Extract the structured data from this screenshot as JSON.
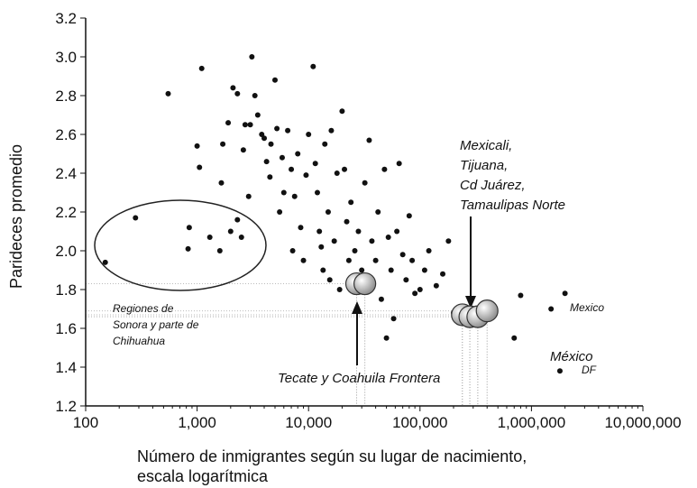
{
  "chart_data": {
    "type": "scatter",
    "y_label": "Parideces promedio",
    "x_label": [
      "Número de inmigrantes según su lugar de nacimiento,",
      "escala logarítmica"
    ],
    "log_x": true,
    "xlim": [
      100,
      10000000
    ],
    "ylim": [
      1.2,
      3.2
    ],
    "xticks": [
      100,
      {
        "value": 1000,
        "label": "1,000"
      },
      {
        "value": 10000,
        "label": "10,000"
      },
      {
        "value": 100000,
        "label": "100,000"
      },
      {
        "value": 1000000,
        "label": "1,000,000"
      },
      {
        "value": 10000000,
        "label": "10,000,000"
      }
    ],
    "yticks": [
      1.2,
      1.4,
      1.6,
      1.8,
      {
        "value": 2,
        "label": "2.0"
      },
      2.2,
      2.4,
      2.6,
      2.8,
      {
        "value": 3,
        "label": "3.0"
      },
      3.2
    ],
    "annotations": {
      "mexicali": [
        "Mexicali,",
        "Tijuana,",
        "Cd Juárez,",
        "Tamaulipas Norte"
      ],
      "regiones": [
        "Regiones de",
        "Sonora y parte de",
        "Chihuahua"
      ],
      "tecate": "Tecate y Coahuila Frontera",
      "mexico_state": "Mexico",
      "mexico_df": [
        "México",
        "DF"
      ]
    },
    "series": [
      {
        "color": "#111111",
        "x": [
          150,
          280,
          550,
          850,
          830,
          1000,
          1050,
          1100,
          1300,
          1600,
          1650,
          1700,
          1900,
          2000,
          2100,
          2300,
          2300,
          2500,
          2600,
          2700,
          3000,
          3100,
          2900,
          3300,
          3500,
          3800,
          4000,
          4200,
          4500,
          5000,
          4600,
          5200,
          5500,
          5800,
          6000,
          6500,
          7000,
          7200,
          7500,
          8000,
          8500,
          9000,
          9500,
          10000,
          11000,
          11500,
          12000,
          12500,
          13000,
          13500,
          14000,
          15000,
          15500,
          16000,
          17000,
          18000,
          19000,
          20000,
          21000,
          22000,
          23000,
          24000,
          26000,
          28000,
          30000,
          32000,
          35000,
          37000,
          40000,
          42000,
          45000,
          48000,
          50000,
          52000,
          55000,
          58000,
          62000,
          65000,
          70000,
          75000,
          80000,
          85000,
          90000,
          100000,
          110000,
          120000,
          140000,
          160000,
          180000,
          200000,
          800000,
          700000,
          1500000,
          2000000,
          1800000
        ],
        "values": [
          1.94,
          2.17,
          2.81,
          2.12,
          2.01,
          2.54,
          2.43,
          2.94,
          2.07,
          2.0,
          2.35,
          2.55,
          2.66,
          2.1,
          2.84,
          2.81,
          2.16,
          2.07,
          2.52,
          2.65,
          2.65,
          3.0,
          2.28,
          2.8,
          2.7,
          2.6,
          2.58,
          2.46,
          2.38,
          2.88,
          2.55,
          2.63,
          2.2,
          2.48,
          2.3,
          2.62,
          2.42,
          2.0,
          2.28,
          2.5,
          2.12,
          1.95,
          2.39,
          2.6,
          2.95,
          2.45,
          2.3,
          2.1,
          2.02,
          1.9,
          2.55,
          2.2,
          1.85,
          2.62,
          2.05,
          2.4,
          1.8,
          2.72,
          2.42,
          2.15,
          1.95,
          2.25,
          2.0,
          2.1,
          1.9,
          2.35,
          2.57,
          2.05,
          1.95,
          2.2,
          1.75,
          2.42,
          1.55,
          2.07,
          1.9,
          1.65,
          2.1,
          2.45,
          1.98,
          1.85,
          2.18,
          1.95,
          1.78,
          1.8,
          1.9,
          2.0,
          1.82,
          1.88,
          2.05,
          1.68,
          1.77,
          1.55,
          1.7,
          1.78,
          1.38
        ]
      },
      {
        "color": "#bbbbbb",
        "x": [
          27000,
          32000,
          240000,
          280000,
          330000,
          400000
        ],
        "values": [
          1.83,
          1.83,
          1.67,
          1.66,
          1.66,
          1.69
        ]
      }
    ]
  }
}
